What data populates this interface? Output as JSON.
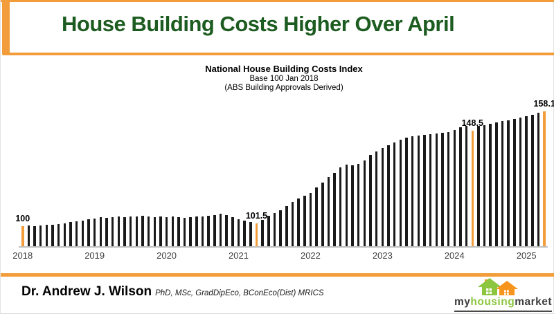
{
  "slide": {
    "title": "House Building Costs Higher Over April",
    "accent_color": "#F29C3A",
    "title_color": "#1D5C20"
  },
  "chart_header": {
    "title": "National House Building Costs Index",
    "subtitle1": "Base 100 Jan 2018",
    "subtitle2": "(ABS Building Approvals Derived)"
  },
  "footer": {
    "author": "Dr. Andrew J. Wilson",
    "credentials": "PhD, MSc, GradDipEco, BConEco(Dist) MRICS"
  },
  "logo": {
    "part1": "my",
    "part2": "housing",
    "part3": "market",
    "dark_color": "#3f3f3f",
    "green_color": "#8CC63F",
    "orange_color": "#F7941E"
  },
  "chart_data": {
    "type": "bar",
    "title": "National House Building Costs Index",
    "frequency": "monthly",
    "x_start": "Jan 2018",
    "x_end": "Apr 2025",
    "categories_years": [
      "2018",
      "2019",
      "2020",
      "2021",
      "2022",
      "2023",
      "2024",
      "2025"
    ],
    "values": [
      100.0,
      100.4,
      100.2,
      100.6,
      100.9,
      100.7,
      101.2,
      101.6,
      102.1,
      102.6,
      103.1,
      103.7,
      104.1,
      104.6,
      104.3,
      104.8,
      105.1,
      104.7,
      105.2,
      104.9,
      105.3,
      105.0,
      104.7,
      104.9,
      104.6,
      105.0,
      104.7,
      104.4,
      104.8,
      105.1,
      104.9,
      105.4,
      105.9,
      106.4,
      105.7,
      104.6,
      103.6,
      102.8,
      102.2,
      101.5,
      103.4,
      105.3,
      106.8,
      108.3,
      110.4,
      112.3,
      114.1,
      115.6,
      117.0,
      119.7,
      122.1,
      124.8,
      127.0,
      129.7,
      131.2,
      131.0,
      131.6,
      133.3,
      136.1,
      137.9,
      139.6,
      141.2,
      142.6,
      143.8,
      144.8,
      145.5,
      145.9,
      146.3,
      146.6,
      146.9,
      147.3,
      147.8,
      148.7,
      150.1,
      150.7,
      148.5,
      150.9,
      151.3,
      152.0,
      152.6,
      153.2,
      153.8,
      154.4,
      155.1,
      155.9,
      156.6,
      157.4,
      158.1
    ],
    "highlighted_points": [
      {
        "index": 0,
        "month": "Jan 2018",
        "value": 100.0,
        "label": "100"
      },
      {
        "index": 39,
        "month": "Apr 2021",
        "value": 101.5,
        "label": "101.5"
      },
      {
        "index": 75,
        "month": "Apr 2024",
        "value": 148.5,
        "label": "148.5"
      },
      {
        "index": 87,
        "month": "Apr 2025",
        "value": 158.1,
        "label": "158.1"
      }
    ],
    "bar_color": "#1a1a1a",
    "highlight_color": "#F29C3A",
    "axis_color": "#bfbfbf",
    "ylim": [
      90,
      160
    ],
    "grid": false,
    "legend": false
  }
}
